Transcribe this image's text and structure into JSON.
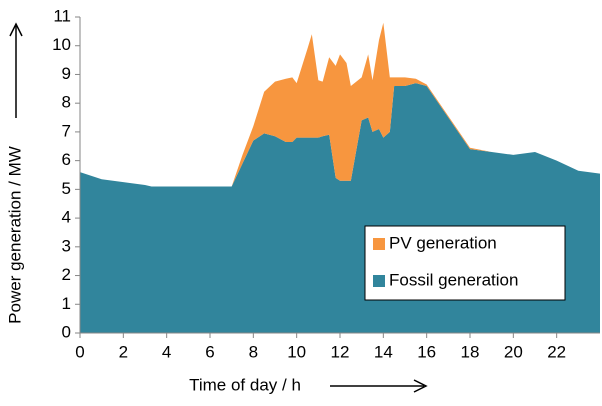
{
  "chart_data": {
    "type": "stacked_area",
    "x_label": "Time of day / h",
    "y_label": "Power generation / MW",
    "x": [
      0,
      1,
      2,
      3,
      3.3,
      4,
      5,
      6,
      7,
      7.5,
      8,
      8.5,
      9,
      9.5,
      9.8,
      10,
      10.5,
      10.7,
      11,
      11.2,
      11.5,
      11.8,
      12,
      12.3,
      12.5,
      13,
      13.3,
      13.5,
      13.8,
      14,
      14.3,
      14.5,
      15,
      15.5,
      16,
      17,
      18,
      19,
      20,
      21,
      22,
      23,
      24
    ],
    "series": [
      {
        "name": "Fossil generation",
        "color": "#31859c",
        "values": [
          5.6,
          5.35,
          5.25,
          5.15,
          5.1,
          5.1,
          5.1,
          5.1,
          5.1,
          5.9,
          6.7,
          6.95,
          6.85,
          6.65,
          6.65,
          6.8,
          6.8,
          6.8,
          6.8,
          6.85,
          6.9,
          5.4,
          5.3,
          5.3,
          5.3,
          7.4,
          7.5,
          7.0,
          7.1,
          6.8,
          7.0,
          8.6,
          8.6,
          8.7,
          8.6,
          7.5,
          6.4,
          6.3,
          6.2,
          6.3,
          6.0,
          5.65,
          5.55
        ]
      },
      {
        "name": "PV generation",
        "color": "#f7963f",
        "values": [
          0,
          0,
          0,
          0,
          0,
          0,
          0,
          0,
          0,
          0.3,
          0.5,
          1.45,
          1.9,
          2.2,
          2.25,
          1.9,
          3.1,
          3.6,
          2.0,
          1.9,
          2.7,
          3.9,
          4.4,
          4.1,
          3.3,
          1.5,
          2.2,
          1.8,
          3.1,
          4.0,
          1.9,
          0.3,
          0.3,
          0.15,
          0.05,
          0.05,
          0.05,
          0,
          0,
          0,
          0,
          0,
          0
        ]
      }
    ],
    "xlim": [
      0,
      24
    ],
    "xticks": [
      0,
      2,
      4,
      6,
      8,
      10,
      12,
      14,
      16,
      18,
      20,
      22
    ],
    "ylim": [
      0,
      11
    ],
    "yticks": [
      0,
      1,
      2,
      3,
      4,
      5,
      6,
      7,
      8,
      9,
      10,
      11
    ],
    "legend": "lower right"
  }
}
